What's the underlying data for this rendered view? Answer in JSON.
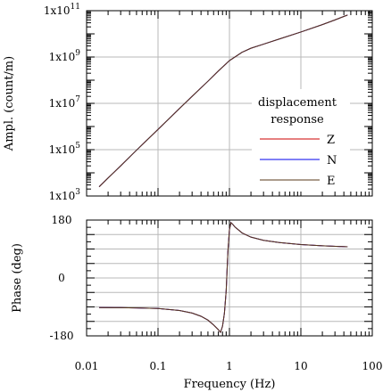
{
  "chart_data": [
    {
      "type": "line",
      "panel": "amplitude",
      "ylabel": "Ampl. (count/m)",
      "yscale": "log",
      "xscale": "log",
      "ylim": [
        1000.0,
        100000000000.0
      ],
      "xlim": [
        0.01,
        100
      ],
      "grid": true,
      "y_tick_labels": [
        {
          "value": 1000.0,
          "base": "1x10",
          "exp": "3"
        },
        {
          "value": 100000.0,
          "base": "1x10",
          "exp": "5"
        },
        {
          "value": 10000000.0,
          "base": "1x10",
          "exp": "7"
        },
        {
          "value": 1000000000.0,
          "base": "1x10",
          "exp": "9"
        },
        {
          "value": 100000000000.0,
          "base": "1x10",
          "exp": "11"
        }
      ],
      "legend": {
        "title_line1": "displacement",
        "title_line2": "response",
        "placement": "right",
        "entries": [
          {
            "label": "Z",
            "color": "#cc0000"
          },
          {
            "label": "N",
            "color": "#0000ee"
          },
          {
            "label": "E",
            "color": "#5a3a1a"
          }
        ]
      },
      "series": [
        {
          "name": "Z",
          "color": "#cc0000",
          "x": [
            0.015,
            0.02,
            0.03,
            0.05,
            0.07,
            0.1,
            0.2,
            0.3,
            0.5,
            0.7,
            1.0,
            1.5,
            2.0,
            3.0,
            5.0,
            10,
            20,
            30,
            45
          ],
          "y": [
            2500.0,
            6000.0,
            20000.0,
            95000.0,
            260000.0,
            750000.0,
            6000000.0,
            20000000.0,
            90000000.0,
            250000000.0,
            700000000.0,
            1600000000.0,
            2400000000.0,
            3600000000.0,
            6000000000.0,
            12000000000.0,
            25000000000.0,
            40000000000.0,
            65000000000.0
          ]
        },
        {
          "name": "N",
          "color": "#0000ee",
          "x": [
            0.015,
            0.02,
            0.03,
            0.05,
            0.07,
            0.1,
            0.2,
            0.3,
            0.5,
            0.7,
            1.0,
            1.5,
            2.0,
            3.0,
            5.0,
            10,
            20,
            30,
            45
          ],
          "y": [
            2500.0,
            6000.0,
            20000.0,
            95000.0,
            260000.0,
            750000.0,
            6000000.0,
            20000000.0,
            90000000.0,
            250000000.0,
            700000000.0,
            1600000000.0,
            2400000000.0,
            3600000000.0,
            6000000000.0,
            12000000000.0,
            25000000000.0,
            40000000000.0,
            65000000000.0
          ]
        },
        {
          "name": "E",
          "color": "#5a3a1a",
          "x": [
            0.015,
            0.02,
            0.03,
            0.05,
            0.07,
            0.1,
            0.2,
            0.3,
            0.5,
            0.7,
            1.0,
            1.5,
            2.0,
            3.0,
            5.0,
            10,
            20,
            30,
            45
          ],
          "y": [
            2500.0,
            6000.0,
            20000.0,
            95000.0,
            260000.0,
            750000.0,
            6000000.0,
            20000000.0,
            90000000.0,
            250000000.0,
            700000000.0,
            1600000000.0,
            2400000000.0,
            3600000000.0,
            6000000000.0,
            12000000000.0,
            25000000000.0,
            40000000000.0,
            65000000000.0
          ]
        }
      ]
    },
    {
      "type": "line",
      "panel": "phase",
      "xlabel": "Frequency (Hz)",
      "ylabel": "Phase (deg)",
      "xscale": "log",
      "xlim": [
        0.01,
        100
      ],
      "ylim": [
        -180,
        180
      ],
      "grid": true,
      "y_tick_labels": [
        {
          "value": 180,
          "label": "180"
        },
        {
          "value": 0,
          "label": "0"
        },
        {
          "value": -180,
          "label": "-180"
        }
      ],
      "x_tick_labels": [
        {
          "value": 0.01,
          "label": "0.01"
        },
        {
          "value": 0.1,
          "label": "0.1"
        },
        {
          "value": 1,
          "label": "1"
        },
        {
          "value": 10,
          "label": "10"
        },
        {
          "value": 100,
          "label": "100"
        }
      ],
      "series": [
        {
          "name": "Z",
          "color": "#cc0000",
          "x": [
            0.015,
            0.03,
            0.05,
            0.1,
            0.2,
            0.3,
            0.4,
            0.5,
            0.6,
            0.7,
            0.75,
            0.8,
            0.85,
            0.9,
            0.95,
            1.0,
            1.05,
            1.1,
            1.2,
            1.5,
            2.0,
            3.0,
            5.0,
            10,
            20,
            45
          ],
          "y": [
            -92,
            -92.5,
            -93,
            -95,
            -101,
            -109,
            -119,
            -131,
            -146,
            -161,
            -169,
            -150,
            -110,
            -40,
            80,
            150,
            172,
            168,
            158,
            140,
            127,
            117,
            110,
            104,
            100,
            97
          ]
        },
        {
          "name": "N",
          "color": "#0000ee",
          "x": [
            0.015,
            0.03,
            0.05,
            0.1,
            0.2,
            0.3,
            0.4,
            0.5,
            0.6,
            0.7,
            0.75,
            0.8,
            0.85,
            0.9,
            0.95,
            1.0,
            1.05,
            1.1,
            1.2,
            1.5,
            2.0,
            3.0,
            5.0,
            10,
            20,
            45
          ],
          "y": [
            -92,
            -92.5,
            -93,
            -95,
            -101,
            -109,
            -119,
            -131,
            -146,
            -161,
            -169,
            -150,
            -110,
            -40,
            80,
            150,
            172,
            168,
            158,
            140,
            127,
            117,
            110,
            104,
            100,
            97
          ]
        },
        {
          "name": "E",
          "color": "#5a3a1a",
          "x": [
            0.015,
            0.03,
            0.05,
            0.1,
            0.2,
            0.3,
            0.4,
            0.5,
            0.6,
            0.7,
            0.75,
            0.8,
            0.85,
            0.9,
            0.95,
            1.0,
            1.05,
            1.1,
            1.2,
            1.5,
            2.0,
            3.0,
            5.0,
            10,
            20,
            45
          ],
          "y": [
            -92,
            -92.5,
            -93,
            -95,
            -101,
            -109,
            -119,
            -131,
            -146,
            -161,
            -169,
            -150,
            -110,
            -40,
            80,
            150,
            172,
            168,
            158,
            140,
            127,
            117,
            110,
            104,
            100,
            97
          ]
        }
      ]
    }
  ]
}
